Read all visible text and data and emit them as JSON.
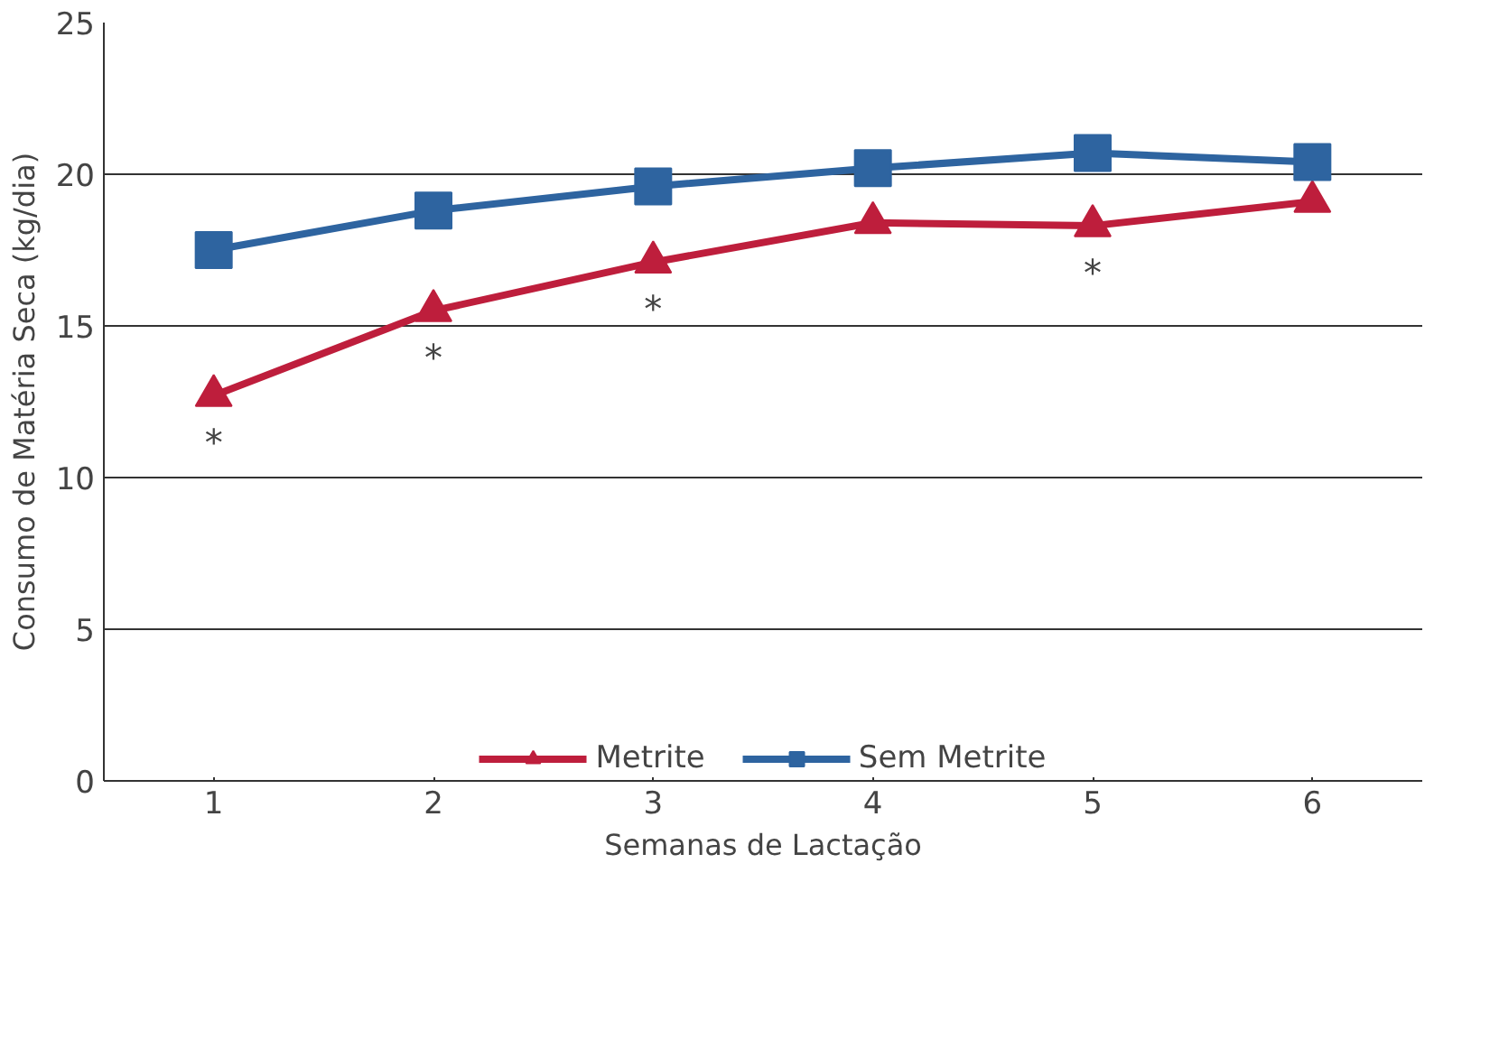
{
  "chart_data": {
    "type": "line",
    "xlabel": "Semanas de Lactação",
    "ylabel": "Consumo de Matéria Seca (kg/dia)",
    "categories": [
      "1",
      "2",
      "3",
      "4",
      "5",
      "6"
    ],
    "series": [
      {
        "name": "Metrite",
        "color": "#be1e3c",
        "marker": "triangle",
        "values": [
          12.7,
          15.5,
          17.1,
          18.4,
          18.3,
          19.1
        ]
      },
      {
        "name": "Sem Metrite",
        "color": "#2e64a0",
        "marker": "square",
        "values": [
          17.5,
          18.8,
          19.6,
          20.2,
          20.7,
          20.4
        ]
      }
    ],
    "annotations": [
      {
        "text": "*",
        "x": "1",
        "y": 12.7
      },
      {
        "text": "*",
        "x": "2",
        "y": 15.5
      },
      {
        "text": "*",
        "x": "3",
        "y": 17.1
      },
      {
        "text": "*",
        "x": "5",
        "y": 18.3
      }
    ],
    "ylim": [
      0,
      25
    ],
    "yticks": [
      0,
      5,
      10,
      15,
      20,
      25
    ],
    "grid": "y",
    "legend": "bottom"
  }
}
